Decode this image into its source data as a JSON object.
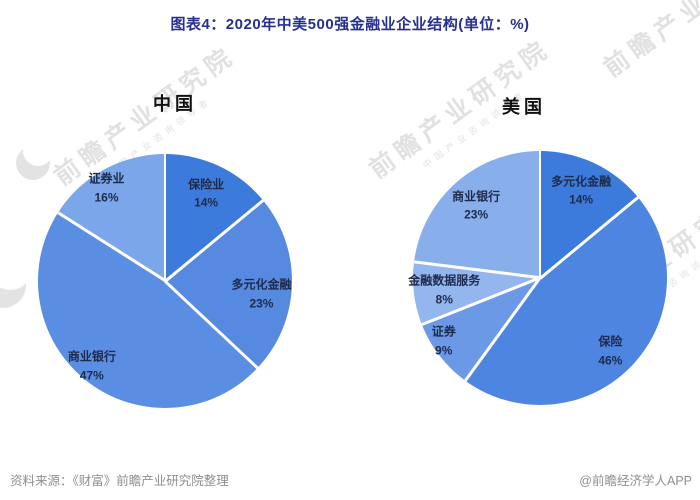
{
  "title": "图表4：2020年中美500强金融业企业结构(单位：%)",
  "watermark": {
    "text": "前瞻产业研究院",
    "subtext": "中国产业咨询领导者"
  },
  "footer": {
    "source": "资料来源：《财富》前瞻产业研究院整理",
    "credit": "@前瞻经济学人APP"
  },
  "chart_data": [
    {
      "type": "pie",
      "title": "中国",
      "unit": "%",
      "start_angle_deg": 0,
      "direction": "clockwise",
      "labels": [
        "保险业",
        "多元化金融",
        "商业银行",
        "证券业"
      ],
      "values": [
        14,
        23,
        47,
        16
      ],
      "colors": [
        "#3c7bdb",
        "#568ae1",
        "#5a8ee3",
        "#7ba6e9"
      ],
      "legend_position": "none",
      "data_labels": "inside"
    },
    {
      "type": "pie",
      "title": "美国",
      "unit": "%",
      "start_angle_deg": 0,
      "direction": "clockwise",
      "labels": [
        "多元化金融",
        "保险",
        "证券",
        "金融数据服务",
        "商业银行"
      ],
      "values": [
        14,
        46,
        9,
        8,
        23
      ],
      "colors": [
        "#3c7bdb",
        "#4e85e0",
        "#6b99e6",
        "#93b6ee",
        "#88aeeb"
      ],
      "legend_position": "none",
      "data_labels": "inside"
    }
  ]
}
